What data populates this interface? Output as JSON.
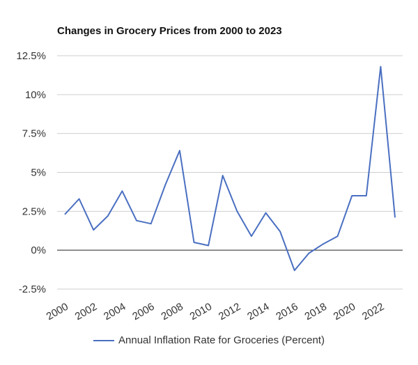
{
  "chart_data": {
    "type": "line",
    "title": "Changes in Grocery Prices from 2000 to 2023",
    "xlabel": "",
    "ylabel": "",
    "x": [
      2000,
      2001,
      2002,
      2003,
      2004,
      2005,
      2006,
      2007,
      2008,
      2009,
      2010,
      2011,
      2012,
      2013,
      2014,
      2015,
      2016,
      2017,
      2018,
      2019,
      2020,
      2021,
      2022,
      2023
    ],
    "series": [
      {
        "name": "Annual Inflation Rate for Groceries (Percent)",
        "values": [
          2.3,
          3.3,
          1.3,
          2.2,
          3.8,
          1.9,
          1.7,
          4.2,
          6.4,
          0.5,
          0.3,
          4.8,
          2.5,
          0.9,
          2.4,
          1.2,
          -1.3,
          -0.2,
          0.4,
          0.9,
          3.5,
          3.5,
          11.8,
          2.1
        ]
      }
    ],
    "ylim": [
      -2.5,
      12.5
    ],
    "yticks": [
      "12.5%",
      "10%",
      "7.5%",
      "5%",
      "2.5%",
      "0%",
      "-2.5%"
    ],
    "xticks": [
      "2000",
      "2002",
      "2004",
      "2006",
      "2008",
      "2010",
      "2012",
      "2014",
      "2016",
      "2018",
      "2020",
      "2022"
    ],
    "grid": true,
    "legend": "bottom",
    "color": "#4a6fc1"
  }
}
